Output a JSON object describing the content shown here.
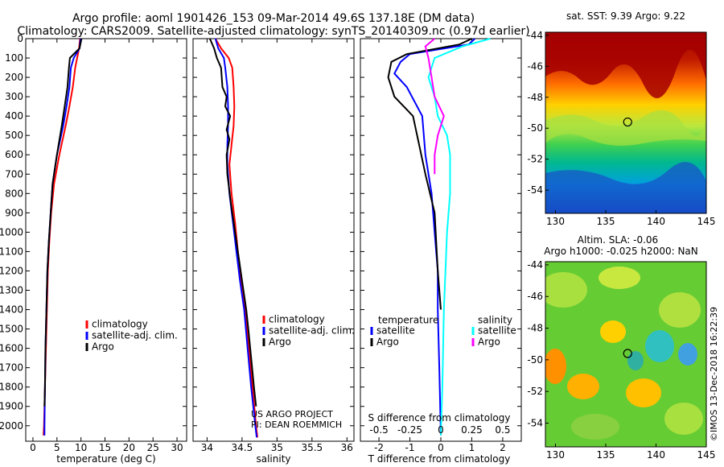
{
  "header": {
    "title_line1": "Argo profile: aoml 1901426_153 09-Mar-2014 49.6S 137.18E (DM data)",
    "title_line2": "Climatology: CARS2009. Satellite-adjusted climatology: synTS_20140309.nc (0.97d earlier)"
  },
  "credit": {
    "line1": "US ARGO PROJECT",
    "line2": "PI: DEAN ROEMMICH"
  },
  "watermark": "©IMOS 13-Dec-2018 16:22:39",
  "colors": {
    "climatology": "#ff0000",
    "satellite": "#0000ff",
    "argo": "#000000",
    "satellite_salinity": "#00ffff",
    "argo_salinity": "#ff00ff"
  },
  "chart_data": [
    {
      "type": "line",
      "id": "temperature",
      "xlabel": "temperature (deg C)",
      "xlim": [
        -1.5,
        32
      ],
      "ylim": [
        2080,
        0
      ],
      "xticks": [
        0,
        5,
        10,
        15,
        20,
        25,
        30
      ],
      "yticks": [
        0,
        100,
        200,
        300,
        400,
        500,
        600,
        700,
        800,
        900,
        1000,
        1100,
        1200,
        1300,
        1400,
        1500,
        1600,
        1700,
        1800,
        1900,
        2000
      ],
      "legend": [
        "climatology",
        "satellite-adj. clim.",
        "Argo"
      ],
      "series": [
        {
          "name": "climatology",
          "color": "#ff0000",
          "points": [
            [
              9.8,
              0
            ],
            [
              9.6,
              50
            ],
            [
              9.2,
              100
            ],
            [
              8.8,
              150
            ],
            [
              8.3,
              250
            ],
            [
              7.6,
              350
            ],
            [
              6.8,
              450
            ],
            [
              5.5,
              600
            ],
            [
              4.4,
              750
            ],
            [
              3.8,
              900
            ],
            [
              3.4,
              1050
            ],
            [
              3.1,
              1200
            ],
            [
              2.9,
              1400
            ],
            [
              2.7,
              1600
            ],
            [
              2.5,
              1800
            ],
            [
              2.3,
              2000
            ],
            [
              2.2,
              2050
            ]
          ]
        },
        {
          "name": "satellite-adj. clim.",
          "color": "#0000ff",
          "points": [
            [
              9.9,
              0
            ],
            [
              9.7,
              50
            ],
            [
              8.5,
              100
            ],
            [
              7.9,
              150
            ],
            [
              7.6,
              250
            ],
            [
              7.0,
              350
            ],
            [
              6.3,
              450
            ],
            [
              5.0,
              600
            ],
            [
              4.1,
              750
            ],
            [
              3.7,
              900
            ],
            [
              3.3,
              1050
            ],
            [
              3.0,
              1200
            ],
            [
              2.8,
              1400
            ],
            [
              2.6,
              1600
            ],
            [
              2.5,
              1800
            ],
            [
              2.4,
              2000
            ],
            [
              2.4,
              2050
            ]
          ]
        },
        {
          "name": "Argo",
          "color": "#000000",
          "points": [
            [
              10.1,
              0
            ],
            [
              9.7,
              50
            ],
            [
              7.7,
              100
            ],
            [
              7.5,
              150
            ],
            [
              7.2,
              250
            ],
            [
              6.6,
              350
            ],
            [
              6.0,
              450
            ],
            [
              5.0,
              600
            ],
            [
              4.1,
              750
            ],
            [
              3.7,
              900
            ],
            [
              3.3,
              1050
            ],
            [
              3.0,
              1200
            ],
            [
              2.8,
              1400
            ],
            [
              2.6,
              1600
            ],
            [
              2.5,
              1800
            ],
            [
              2.4,
              1900
            ]
          ]
        }
      ]
    },
    {
      "type": "line",
      "id": "salinity",
      "xlabel": "salinity",
      "xlim": [
        33.8,
        36.1
      ],
      "ylim": [
        2080,
        0
      ],
      "xticks": [
        34,
        34.5,
        35,
        35.5,
        36
      ],
      "legend": [
        "climatology",
        "satellite-adj. clim.",
        "Argo"
      ],
      "series": [
        {
          "name": "climatology",
          "color": "#ff0000",
          "points": [
            [
              34.12,
              0
            ],
            [
              34.2,
              50
            ],
            [
              34.31,
              100
            ],
            [
              34.36,
              150
            ],
            [
              34.38,
              250
            ],
            [
              34.39,
              350
            ],
            [
              34.38,
              450
            ],
            [
              34.35,
              550
            ],
            [
              34.32,
              650
            ],
            [
              34.35,
              800
            ],
            [
              34.4,
              950
            ],
            [
              34.44,
              1100
            ],
            [
              34.49,
              1250
            ],
            [
              34.55,
              1400
            ],
            [
              34.6,
              1600
            ],
            [
              34.65,
              1800
            ],
            [
              34.7,
              2000
            ],
            [
              34.72,
              2060
            ]
          ]
        },
        {
          "name": "satellite-adj. clim.",
          "color": "#0000ff",
          "points": [
            [
              34.12,
              0
            ],
            [
              34.16,
              50
            ],
            [
              34.24,
              100
            ],
            [
              34.26,
              150
            ],
            [
              34.29,
              250
            ],
            [
              34.3,
              350
            ],
            [
              34.3,
              450
            ],
            [
              34.29,
              550
            ],
            [
              34.29,
              650
            ],
            [
              34.32,
              800
            ],
            [
              34.37,
              950
            ],
            [
              34.42,
              1100
            ],
            [
              34.47,
              1250
            ],
            [
              34.53,
              1400
            ],
            [
              34.58,
              1600
            ],
            [
              34.63,
              1800
            ],
            [
              34.69,
              2000
            ],
            [
              34.71,
              2060
            ]
          ]
        },
        {
          "name": "Argo",
          "color": "#000000",
          "points": [
            [
              34.04,
              0
            ],
            [
              34.1,
              50
            ],
            [
              34.14,
              100
            ],
            [
              34.2,
              150
            ],
            [
              34.22,
              250
            ],
            [
              34.28,
              300
            ],
            [
              34.26,
              350
            ],
            [
              34.33,
              400
            ],
            [
              34.28,
              470
            ],
            [
              34.32,
              520
            ],
            [
              34.28,
              600
            ],
            [
              34.29,
              700
            ],
            [
              34.34,
              850
            ],
            [
              34.4,
              1000
            ],
            [
              34.46,
              1150
            ],
            [
              34.52,
              1300
            ],
            [
              34.56,
              1400
            ],
            [
              34.59,
              1500
            ],
            [
              34.63,
              1650
            ],
            [
              34.67,
              1800
            ],
            [
              34.7,
              1900
            ]
          ]
        }
      ]
    },
    {
      "type": "line",
      "id": "differences",
      "xlabel": "T difference from climatology",
      "xlabel2": "S difference from climatology",
      "xlim": [
        -2.6,
        2.6
      ],
      "ylim": [
        2080,
        0
      ],
      "xticks": [
        -2,
        -1,
        0,
        1,
        2
      ],
      "xticks2": [
        "-0.5",
        "-0.25",
        "0",
        "0.25",
        "0.5"
      ],
      "legend_temperature_title": "temperature",
      "legend_salinity_title": "salinity",
      "legend_temperature": [
        "satellite",
        "Argo"
      ],
      "legend_salinity": [
        "satellite",
        "Argo"
      ],
      "series": [
        {
          "name": "temperature satellite",
          "color": "#0000ff",
          "points": [
            [
              1.1,
              0
            ],
            [
              0.9,
              30
            ],
            [
              -1.0,
              80
            ],
            [
              -1.3,
              120
            ],
            [
              -1.5,
              180
            ],
            [
              -1.1,
              250
            ],
            [
              -0.6,
              400
            ],
            [
              -0.5,
              600
            ],
            [
              -0.3,
              800
            ],
            [
              -0.2,
              1000
            ],
            [
              -0.1,
              1200
            ],
            [
              -0.1,
              1400
            ],
            [
              -0.05,
              1700
            ],
            [
              0,
              2050
            ]
          ]
        },
        {
          "name": "temperature Argo",
          "color": "#000000",
          "points": [
            [
              1.0,
              0
            ],
            [
              0.6,
              30
            ],
            [
              -1.1,
              80
            ],
            [
              -1.6,
              120
            ],
            [
              -1.7,
              200
            ],
            [
              -1.5,
              300
            ],
            [
              -0.9,
              400
            ],
            [
              -0.7,
              550
            ],
            [
              -0.5,
              700
            ],
            [
              -0.2,
              900
            ],
            [
              -0.1,
              1200
            ],
            [
              0,
              1400
            ]
          ]
        },
        {
          "name": "salinity satellite",
          "color": "#00ffff",
          "points": [
            [
              1.6,
              0
            ],
            [
              0.7,
              40
            ],
            [
              -0.2,
              100
            ],
            [
              -0.4,
              200
            ],
            [
              -0.2,
              300
            ],
            [
              -0.1,
              400
            ],
            [
              0.2,
              500
            ],
            [
              0.3,
              600
            ],
            [
              0.3,
              800
            ],
            [
              0.2,
              1000
            ],
            [
              0.1,
              1400
            ],
            [
              0.05,
              1800
            ],
            [
              0,
              2050
            ]
          ]
        },
        {
          "name": "salinity Argo",
          "color": "#ff00ff",
          "points": [
            [
              -0.2,
              0
            ],
            [
              -0.5,
              40
            ],
            [
              -0.4,
              100
            ],
            [
              -0.3,
              200
            ],
            [
              -0.2,
              300
            ],
            [
              0.1,
              400
            ],
            [
              -0.1,
              500
            ],
            [
              -0.2,
              600
            ],
            [
              -0.2,
              700
            ]
          ]
        }
      ]
    },
    {
      "type": "heatmap",
      "id": "sst_map",
      "title": "sat. SST: 9.39 Argo: 9.22",
      "xlim": [
        129,
        145
      ],
      "ylim": [
        -55.5,
        -43.8
      ],
      "xticks": [
        130,
        135,
        140,
        145
      ],
      "yticks": [
        -44,
        -46,
        -48,
        -50,
        -52,
        -54
      ],
      "marker": [
        137.18,
        -49.6
      ]
    },
    {
      "type": "heatmap",
      "id": "sla_map",
      "title": "Altim. SLA: -0.06",
      "subtitle": "Argo h1000: -0.025 h2000: NaN",
      "xlim": [
        129,
        145
      ],
      "ylim": [
        -55.5,
        -43.8
      ],
      "xticks": [
        130,
        135,
        140,
        145
      ],
      "yticks": [
        -44,
        -46,
        -48,
        -50,
        -52,
        -54
      ],
      "marker": [
        137.18,
        -49.6
      ]
    }
  ]
}
